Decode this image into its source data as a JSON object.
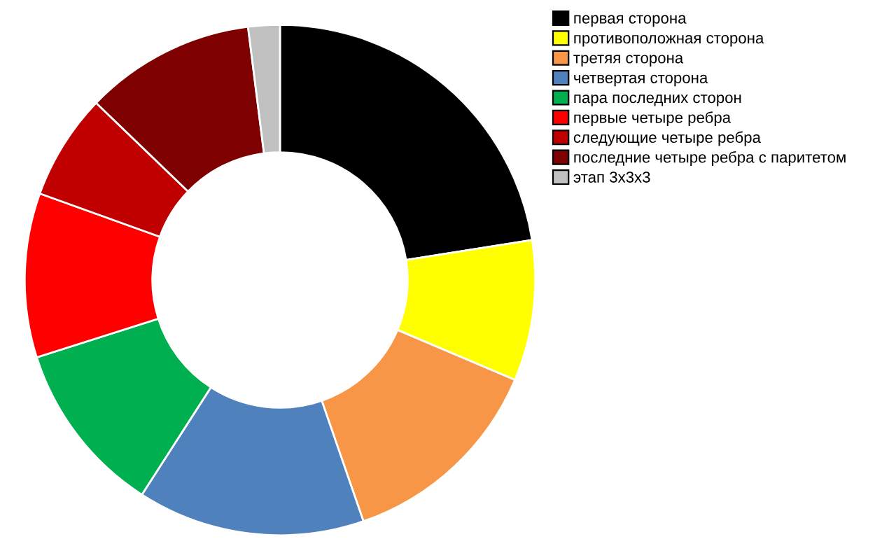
{
  "chart_data": {
    "type": "donut",
    "categories": [
      "первая сторона",
      "противоположная сторона",
      "третяя сторона",
      "четвертая сторона",
      "пара последних сторон",
      "первые четыре ребра",
      "следующие четыре ребра",
      "последние четыре ребра с паритетом",
      "этап 3x3x3"
    ],
    "values": [
      22.5,
      8.9,
      13.3,
      14.4,
      11.0,
      10.4,
      6.7,
      10.8,
      2.0
    ],
    "colors": [
      "#000000",
      "#ffff00",
      "#f79646",
      "#4f81bd",
      "#00b050",
      "#ff0000",
      "#c00000",
      "#7f0000",
      "#c0c0c0"
    ],
    "legend": "top right"
  }
}
